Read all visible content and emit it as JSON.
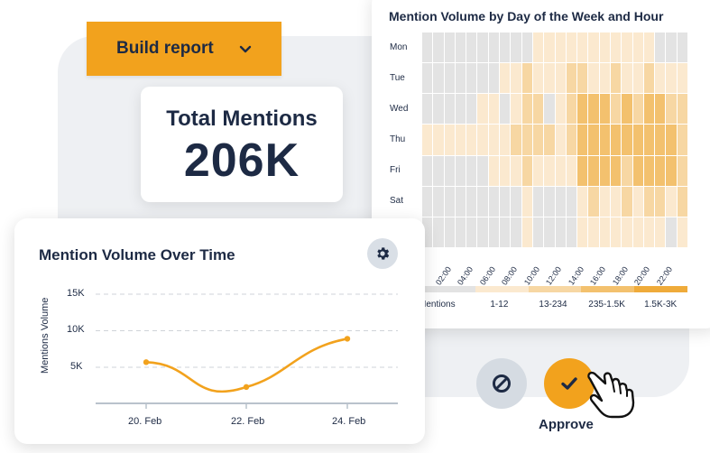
{
  "build_report": {
    "label": "Build report",
    "icon": "chevron-down-icon"
  },
  "total_mentions": {
    "title": "Total Mentions",
    "value": "206K"
  },
  "heatmap": {
    "title": "Mention Volume by Day of the Week and Hour",
    "days": [
      "Mon",
      "Tue",
      "Wed",
      "Thu",
      "Fri",
      "Sat",
      ""
    ],
    "hour_labels": [
      "02:00",
      "04:00",
      "06:00",
      "08:00",
      "10:00",
      "12:00",
      "14:00",
      "16:00",
      "18:00",
      "20:00",
      "22:00"
    ],
    "legend": [
      {
        "label": "Mentions",
        "color": "#e3e3e3"
      },
      {
        "label": "1-12",
        "color": "#fbe9cf"
      },
      {
        "label": "13-234",
        "color": "#f7d7a3"
      },
      {
        "label": "235-1.5K",
        "color": "#f3c16e"
      },
      {
        "label": "1.5K-3K",
        "color": "#efab3a"
      }
    ],
    "levels": [
      [
        0,
        0,
        0,
        0,
        0,
        0,
        0,
        0,
        0,
        0,
        1,
        1,
        1,
        1,
        1,
        1,
        1,
        1,
        1,
        1,
        1,
        0,
        0,
        0
      ],
      [
        0,
        0,
        0,
        0,
        0,
        0,
        0,
        1,
        1,
        2,
        1,
        1,
        1,
        2,
        2,
        1,
        1,
        2,
        1,
        1,
        2,
        1,
        1,
        1
      ],
      [
        0,
        0,
        0,
        0,
        0,
        1,
        1,
        0,
        1,
        2,
        2,
        0,
        1,
        2,
        3,
        3,
        3,
        2,
        3,
        2,
        3,
        3,
        2,
        2
      ],
      [
        1,
        1,
        1,
        1,
        1,
        1,
        1,
        1,
        2,
        2,
        2,
        2,
        1,
        2,
        3,
        3,
        3,
        3,
        3,
        3,
        3,
        3,
        3,
        2
      ],
      [
        0,
        0,
        0,
        0,
        0,
        0,
        1,
        1,
        1,
        2,
        1,
        1,
        1,
        1,
        3,
        3,
        3,
        3,
        2,
        3,
        3,
        3,
        3,
        2
      ],
      [
        0,
        0,
        0,
        0,
        0,
        0,
        0,
        0,
        0,
        1,
        0,
        0,
        0,
        0,
        1,
        2,
        1,
        1,
        2,
        1,
        2,
        2,
        1,
        2
      ],
      [
        0,
        0,
        0,
        0,
        0,
        0,
        0,
        0,
        0,
        1,
        0,
        0,
        0,
        0,
        1,
        1,
        1,
        1,
        1,
        1,
        1,
        1,
        0,
        1
      ]
    ]
  },
  "time_chart": {
    "title": "Mention Volume Over Time",
    "settings_icon": "gear-icon",
    "chart_data": {
      "type": "line",
      "title": "Mention Volume Over Time",
      "xlabel": "",
      "ylabel": "Mentions Volume",
      "x": [
        "20. Feb",
        "22. Feb",
        "24. Feb"
      ],
      "values": [
        5700,
        2300,
        8900
      ],
      "yticks": [
        "15K",
        "10K",
        "5K"
      ],
      "ylim": [
        0,
        15000
      ],
      "grid": true,
      "color": "#f2a21d"
    }
  },
  "actions": {
    "cancel_icon": "cancel-icon",
    "approve_icon": "check-icon",
    "approve_label": "Approve",
    "cursor_icon": "hand-pointer-icon"
  }
}
